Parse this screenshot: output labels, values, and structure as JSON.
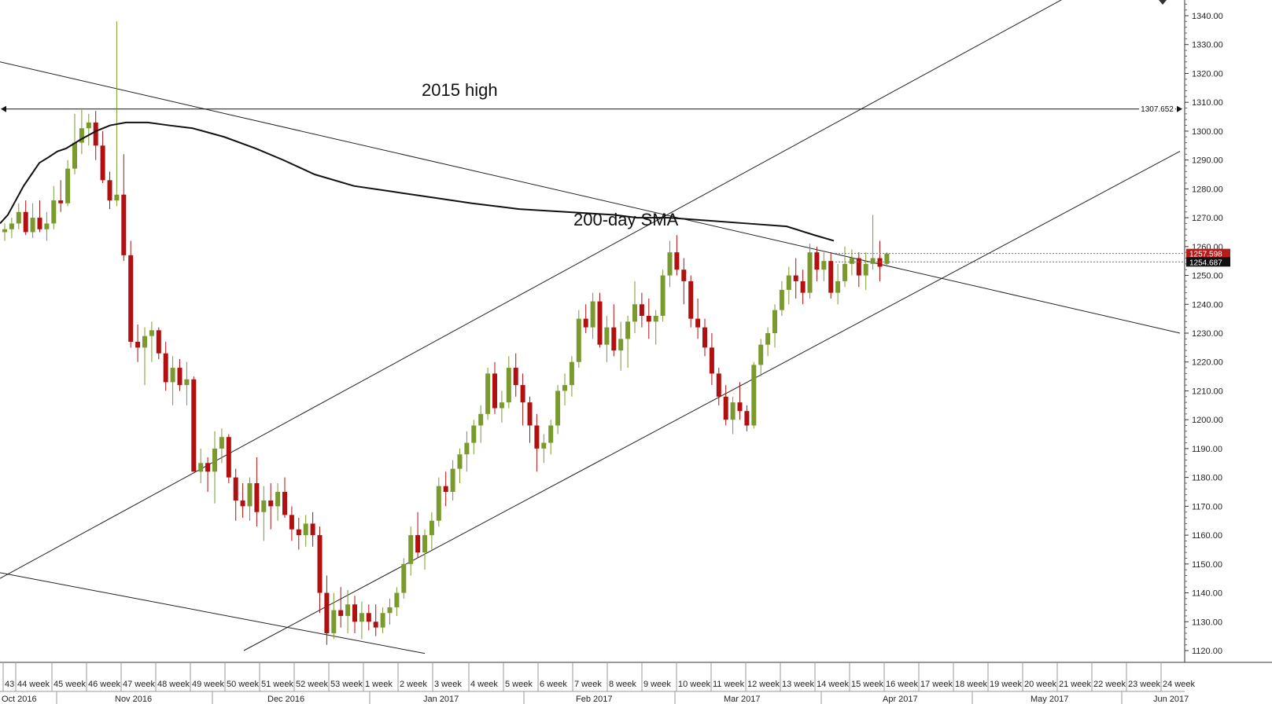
{
  "chart_data": {
    "type": "candlestick",
    "y_axis": {
      "min": 1115,
      "max": 1345,
      "ticks": [
        "1120.00",
        "1130.00",
        "1140.00",
        "1150.00",
        "1160.00",
        "1170.00",
        "1180.00",
        "1190.00",
        "1200.00",
        "1210.00",
        "1220.00",
        "1230.00",
        "1240.00",
        "1250.00",
        "1260.00",
        "1270.00",
        "1280.00",
        "1290.00",
        "1300.00",
        "1310.00",
        "1320.00",
        "1330.00",
        "1340.00"
      ],
      "grid": false,
      "side": "right"
    },
    "x_axis": {
      "week_labels": [
        "43",
        "44 week",
        "45 week",
        "46 week",
        "47 week",
        "48 week",
        "49 week",
        "50 week",
        "51 week",
        "52 week",
        "53 week",
        "1 week",
        "2 week",
        "3 week",
        "4 week",
        "5 week",
        "6 week",
        "7 week",
        "8 week",
        "9 week",
        "10 week",
        "11 week",
        "12 week",
        "13 week",
        "14 week",
        "15 week",
        "16 week",
        "17 week",
        "18 week",
        "19 week",
        "20 week",
        "21 week",
        "22 week",
        "23 week",
        "24 week"
      ],
      "month_labels": [
        "Oct 2016",
        "Nov 2016",
        "Dec 2016",
        "Jan 2017",
        "Feb 2017",
        "Mar 2017",
        "Apr 2017",
        "May 2017",
        "Jun 2017"
      ]
    },
    "candles": [
      [
        1265,
        1268,
        1262,
        1266
      ],
      [
        1266,
        1270,
        1263,
        1268
      ],
      [
        1268,
        1275,
        1266,
        1272
      ],
      [
        1272,
        1276,
        1264,
        1265
      ],
      [
        1265,
        1275,
        1263,
        1270
      ],
      [
        1270,
        1276,
        1265,
        1266
      ],
      [
        1266,
        1272,
        1262,
        1268
      ],
      [
        1268,
        1281,
        1266,
        1276
      ],
      [
        1276,
        1283,
        1272,
        1275
      ],
      [
        1275,
        1290,
        1274,
        1287
      ],
      [
        1287,
        1306,
        1285,
        1296
      ],
      [
        1296,
        1308,
        1292,
        1301
      ],
      [
        1301,
        1306,
        1295,
        1303
      ],
      [
        1303,
        1307,
        1290,
        1295
      ],
      [
        1295,
        1300,
        1282,
        1283
      ],
      [
        1283,
        1286,
        1273,
        1276
      ],
      [
        1276,
        1338,
        1274,
        1278
      ],
      [
        1278,
        1292,
        1255,
        1257
      ],
      [
        1257,
        1262,
        1225,
        1227
      ],
      [
        1227,
        1233,
        1220,
        1225
      ],
      [
        1225,
        1232,
        1212,
        1229
      ],
      [
        1229,
        1234,
        1220,
        1231
      ],
      [
        1231,
        1232,
        1221,
        1223
      ],
      [
        1223,
        1227,
        1210,
        1213
      ],
      [
        1213,
        1222,
        1205,
        1218
      ],
      [
        1218,
        1221,
        1210,
        1212
      ],
      [
        1212,
        1220,
        1205,
        1214
      ],
      [
        1214,
        1215,
        1182,
        1182
      ],
      [
        1182,
        1190,
        1178,
        1185
      ],
      [
        1185,
        1187,
        1175,
        1182
      ],
      [
        1182,
        1196,
        1171,
        1190
      ],
      [
        1190,
        1197,
        1185,
        1194
      ],
      [
        1194,
        1195,
        1178,
        1180
      ],
      [
        1180,
        1183,
        1165,
        1172
      ],
      [
        1172,
        1178,
        1166,
        1170
      ],
      [
        1170,
        1180,
        1165,
        1178
      ],
      [
        1178,
        1187,
        1163,
        1168
      ],
      [
        1168,
        1177,
        1158,
        1172
      ],
      [
        1172,
        1178,
        1162,
        1170
      ],
      [
        1170,
        1178,
        1165,
        1175
      ],
      [
        1175,
        1180,
        1166,
        1167
      ],
      [
        1167,
        1170,
        1158,
        1162
      ],
      [
        1162,
        1166,
        1155,
        1160
      ],
      [
        1160,
        1167,
        1156,
        1164
      ],
      [
        1164,
        1168,
        1156,
        1160
      ],
      [
        1160,
        1163,
        1133,
        1140
      ],
      [
        1140,
        1146,
        1122,
        1126
      ],
      [
        1126,
        1140,
        1124,
        1134
      ],
      [
        1134,
        1142,
        1128,
        1132
      ],
      [
        1132,
        1141,
        1126,
        1136
      ],
      [
        1136,
        1139,
        1126,
        1130
      ],
      [
        1130,
        1137,
        1124,
        1133
      ],
      [
        1133,
        1136,
        1127,
        1130
      ],
      [
        1130,
        1136,
        1125,
        1128
      ],
      [
        1128,
        1135,
        1126,
        1133
      ],
      [
        1133,
        1138,
        1129,
        1135
      ],
      [
        1135,
        1142,
        1132,
        1140
      ],
      [
        1140,
        1152,
        1138,
        1150
      ],
      [
        1150,
        1163,
        1146,
        1160
      ],
      [
        1160,
        1168,
        1152,
        1154
      ],
      [
        1154,
        1162,
        1148,
        1160
      ],
      [
        1160,
        1168,
        1155,
        1165
      ],
      [
        1165,
        1180,
        1163,
        1177
      ],
      [
        1177,
        1182,
        1170,
        1175
      ],
      [
        1175,
        1186,
        1172,
        1183
      ],
      [
        1183,
        1190,
        1178,
        1188
      ],
      [
        1188,
        1196,
        1182,
        1192
      ],
      [
        1192,
        1200,
        1188,
        1198
      ],
      [
        1198,
        1205,
        1192,
        1202
      ],
      [
        1202,
        1218,
        1200,
        1216
      ],
      [
        1216,
        1220,
        1202,
        1204
      ],
      [
        1204,
        1210,
        1199,
        1206
      ],
      [
        1206,
        1222,
        1204,
        1218
      ],
      [
        1218,
        1223,
        1208,
        1212
      ],
      [
        1212,
        1216,
        1198,
        1206
      ],
      [
        1206,
        1208,
        1192,
        1198
      ],
      [
        1198,
        1202,
        1182,
        1190
      ],
      [
        1190,
        1195,
        1185,
        1192
      ],
      [
        1192,
        1200,
        1188,
        1198
      ],
      [
        1198,
        1212,
        1195,
        1210
      ],
      [
        1210,
        1216,
        1205,
        1212
      ],
      [
        1212,
        1222,
        1208,
        1220
      ],
      [
        1220,
        1238,
        1218,
        1235
      ],
      [
        1235,
        1240,
        1230,
        1232
      ],
      [
        1232,
        1244,
        1228,
        1241
      ],
      [
        1241,
        1244,
        1225,
        1226
      ],
      [
        1226,
        1236,
        1220,
        1232
      ],
      [
        1232,
        1240,
        1222,
        1224
      ],
      [
        1224,
        1234,
        1217,
        1228
      ],
      [
        1228,
        1236,
        1218,
        1234
      ],
      [
        1234,
        1248,
        1230,
        1240
      ],
      [
        1240,
        1244,
        1232,
        1236
      ],
      [
        1236,
        1242,
        1228,
        1234
      ],
      [
        1234,
        1238,
        1226,
        1236
      ],
      [
        1236,
        1252,
        1234,
        1250
      ],
      [
        1250,
        1262,
        1246,
        1258
      ],
      [
        1258,
        1264,
        1250,
        1252
      ],
      [
        1252,
        1256,
        1240,
        1248
      ],
      [
        1248,
        1250,
        1232,
        1235
      ],
      [
        1235,
        1242,
        1228,
        1232
      ],
      [
        1232,
        1235,
        1222,
        1225
      ],
      [
        1225,
        1230,
        1212,
        1216
      ],
      [
        1216,
        1218,
        1205,
        1208
      ],
      [
        1208,
        1212,
        1198,
        1200
      ],
      [
        1200,
        1208,
        1195,
        1206
      ],
      [
        1206,
        1213,
        1200,
        1203
      ],
      [
        1203,
        1205,
        1196,
        1198
      ],
      [
        1198,
        1220,
        1197,
        1219
      ],
      [
        1219,
        1228,
        1215,
        1226
      ],
      [
        1226,
        1232,
        1222,
        1230
      ],
      [
        1230,
        1240,
        1225,
        1238
      ],
      [
        1238,
        1248,
        1236,
        1245
      ],
      [
        1245,
        1253,
        1240,
        1250
      ],
      [
        1250,
        1256,
        1242,
        1248
      ],
      [
        1248,
        1252,
        1240,
        1244
      ],
      [
        1244,
        1261,
        1242,
        1258
      ],
      [
        1258,
        1260,
        1248,
        1252
      ],
      [
        1252,
        1258,
        1248,
        1255
      ],
      [
        1255,
        1258,
        1242,
        1244
      ],
      [
        1244,
        1254,
        1240,
        1248
      ],
      [
        1248,
        1260,
        1246,
        1254
      ],
      [
        1254,
        1259,
        1250,
        1256
      ],
      [
        1256,
        1258,
        1246,
        1250
      ],
      [
        1250,
        1258,
        1245,
        1254
      ],
      [
        1254,
        1271,
        1252,
        1256
      ],
      [
        1256,
        1262,
        1248,
        1253
      ],
      [
        1254,
        1258,
        1253,
        1257.6
      ]
    ],
    "sma_200": [
      [
        0,
        1268
      ],
      [
        10,
        1271
      ],
      [
        20,
        1276
      ],
      [
        30,
        1281
      ],
      [
        40,
        1285
      ],
      [
        50,
        1289
      ],
      [
        62,
        1291
      ],
      [
        73,
        1293
      ],
      [
        84,
        1294
      ],
      [
        102,
        1297
      ],
      [
        122,
        1300
      ],
      [
        140,
        1302
      ],
      [
        160,
        1303
      ],
      [
        188,
        1303
      ],
      [
        215,
        1302
      ],
      [
        245,
        1301
      ],
      [
        285,
        1298
      ],
      [
        325,
        1294
      ],
      [
        360,
        1290
      ],
      [
        400,
        1285
      ],
      [
        450,
        1281
      ],
      [
        500,
        1279
      ],
      [
        550,
        1277
      ],
      [
        600,
        1275
      ],
      [
        660,
        1273
      ],
      [
        720,
        1272
      ],
      [
        780,
        1271
      ],
      [
        810,
        1270
      ],
      [
        850,
        1270
      ],
      [
        900,
        1269
      ],
      [
        950,
        1268
      ],
      [
        1000,
        1267
      ],
      [
        1035,
        1264
      ],
      [
        1060,
        1262
      ]
    ],
    "trend_lines": [
      {
        "name": "upper-descending",
        "x1": 0,
        "y1": 1324,
        "x2": 1500,
        "y2": 1230
      },
      {
        "name": "lower-descending",
        "x1": 0,
        "y1": 1147,
        "x2": 540,
        "y2": 1119
      },
      {
        "name": "channel-upper",
        "x1": 0,
        "y1": 1145,
        "x2": 1420,
        "y2": 1356
      },
      {
        "name": "channel-lower",
        "x1": 310,
        "y1": 1120,
        "x2": 1500,
        "y2": 1293
      }
    ],
    "horizontal_level": {
      "value": 1307.652,
      "label": "1307.652"
    },
    "price_tags": [
      {
        "label": "1257.598",
        "value": 1257.598,
        "color": "#b71c1c"
      },
      {
        "label": "1254.687",
        "value": 1254.687,
        "color": "#111111"
      }
    ],
    "annotations": [
      {
        "text": "2015 high"
      },
      {
        "text": "200-day SMA"
      }
    ],
    "colors": {
      "up": "#7a9a2e",
      "down": "#b01010",
      "sma": "#111111",
      "lines": "#222222"
    }
  }
}
